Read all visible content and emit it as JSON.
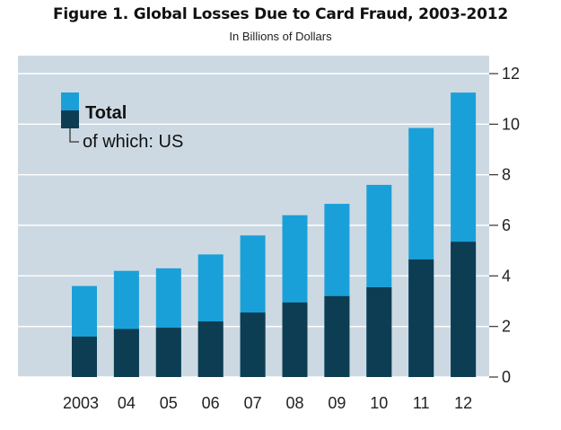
{
  "chart_data": {
    "type": "bar",
    "stacked": true,
    "title": "Figure 1. Global Losses Due to Card Fraud, 2003-2012",
    "subtitle": "In Billions of Dollars",
    "categories": [
      "2003",
      "04",
      "05",
      "06",
      "07",
      "08",
      "09",
      "10",
      "11",
      "12"
    ],
    "series": [
      {
        "name": "of which: US",
        "values": [
          1.6,
          1.9,
          1.95,
          2.2,
          2.55,
          2.95,
          3.2,
          3.55,
          4.65,
          5.35
        ],
        "color": "#0d3d52"
      },
      {
        "name": "Total",
        "values": [
          3.6,
          4.2,
          4.3,
          4.85,
          5.6,
          6.4,
          6.85,
          7.6,
          9.85,
          11.25
        ],
        "color": "#1aa0d8"
      }
    ],
    "ylim": [
      0,
      12
    ],
    "yticks": [
      "0",
      "2",
      "4",
      "6",
      "8",
      "10",
      "12"
    ],
    "legend": {
      "position": "top-left",
      "main": "Total",
      "sub_prefix": "of which:",
      "sub_suffix": " US"
    },
    "background": "#cdd9e2",
    "grid": true
  }
}
